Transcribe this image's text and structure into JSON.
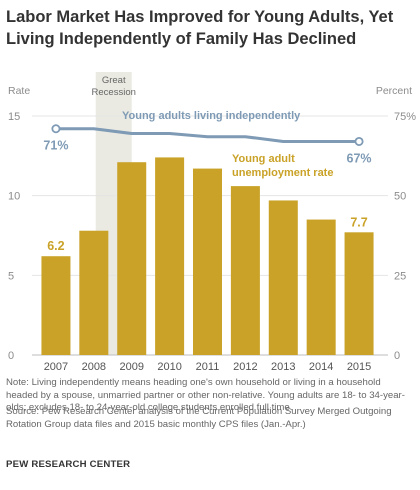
{
  "title": "Labor Market Has Improved for Young Adults, Yet Living Independently of Family Has Declined",
  "colors": {
    "bar": "#C9A227",
    "bar_label": "#C9A227",
    "line": "#7E9AB5",
    "recession_shade": "#EAEAE2",
    "axis_text": "#8C8C8C",
    "gridline": "#E4E4E4"
  },
  "chart_data": {
    "type": "bar",
    "categories": [
      "2007",
      "2008",
      "2009",
      "2010",
      "2011",
      "2012",
      "2013",
      "2014",
      "2015"
    ],
    "series": [
      {
        "name": "Young adult unemployment rate",
        "axis": "left",
        "values": [
          6.2,
          7.8,
          12.1,
          12.4,
          11.7,
          10.6,
          9.7,
          8.5,
          7.7
        ]
      },
      {
        "name": "Young adults living independently",
        "type": "line",
        "axis": "right",
        "values": [
          71,
          71,
          69.5,
          69.5,
          68.5,
          68.5,
          67,
          67,
          67
        ]
      }
    ],
    "data_labels": [
      {
        "series": "Young adult unemployment rate",
        "category": "2007",
        "text": "6.2"
      },
      {
        "series": "Young adult unemployment rate",
        "category": "2015",
        "text": "7.7"
      },
      {
        "series": "Young adults living independently",
        "category": "2007",
        "text": "71%"
      },
      {
        "series": "Young adults living independently",
        "category": "2015",
        "text": "67%"
      }
    ],
    "left_axis": {
      "label": "Rate",
      "ylim": [
        0,
        15
      ],
      "ticks": [
        "0",
        "5",
        "10",
        "15"
      ]
    },
    "right_axis": {
      "label": "Percent",
      "ylim": [
        0,
        75
      ],
      "ticks": [
        "0",
        "25",
        "50",
        "75%"
      ]
    },
    "annotations": {
      "recession": {
        "label": "Great Recession",
        "from": "2008",
        "to": "2009"
      }
    },
    "grid": true,
    "legend": "inline labels"
  },
  "footer": {
    "note": "Note: Living independently means heading one's own household or living in a household headed by a spouse, unmarried partner or other non-relative. Young adults are 18- to 34-year-olds; excludes 18- to 24-year-old college students enrolled full time.",
    "source": "Source: Pew Research Center analysis of the Current Population Survey Merged Outgoing Rotation Group data files and 2015 basic monthly CPS files (Jan.-Apr.)",
    "credit": "PEW RESEARCH CENTER"
  }
}
